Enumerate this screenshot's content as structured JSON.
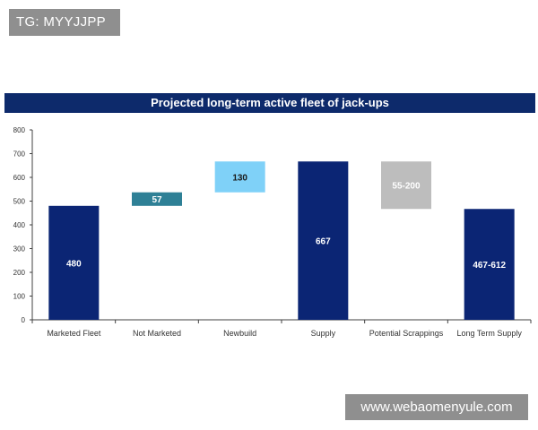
{
  "watermarks": {
    "top": "TG: MYYJJPP",
    "bottom": "www.webaomenyule.com"
  },
  "chart_data": {
    "type": "waterfall",
    "title": "Projected long-term active fleet of jack-ups",
    "xlabel": "",
    "ylabel": "",
    "ylim": [
      0,
      800
    ],
    "yticks": [
      0,
      100,
      200,
      300,
      400,
      500,
      600,
      700,
      800
    ],
    "grid": false,
    "categories": [
      "Marketed Fleet",
      "Not Marketed",
      "Newbuild",
      "Supply",
      "Potential Scrappings",
      "Long Term Supply"
    ],
    "bars": [
      {
        "category": "Marketed Fleet",
        "label": "480",
        "base": 0,
        "top": 480,
        "kind": "total"
      },
      {
        "category": "Not Marketed",
        "label": "57",
        "base": 480,
        "top": 537,
        "kind": "increase"
      },
      {
        "category": "Newbuild",
        "label": "130",
        "base": 537,
        "top": 667,
        "kind": "increase"
      },
      {
        "category": "Supply",
        "label": "667",
        "base": 0,
        "top": 667,
        "kind": "total"
      },
      {
        "category": "Potential Scrappings",
        "label": "55-200",
        "base": 467,
        "top": 667,
        "kind": "decrease"
      },
      {
        "category": "Long Term Supply",
        "label": "467-612",
        "base": 0,
        "top": 467,
        "kind": "total"
      }
    ],
    "colors": {
      "total": "#0b2574",
      "increase_1": "#2e8096",
      "increase_2": "#7fd1f8",
      "decrease": "#bdbdbd",
      "axis": "#404040",
      "label_dark": "#ffffff",
      "label_light": "#1a1a1a"
    }
  }
}
